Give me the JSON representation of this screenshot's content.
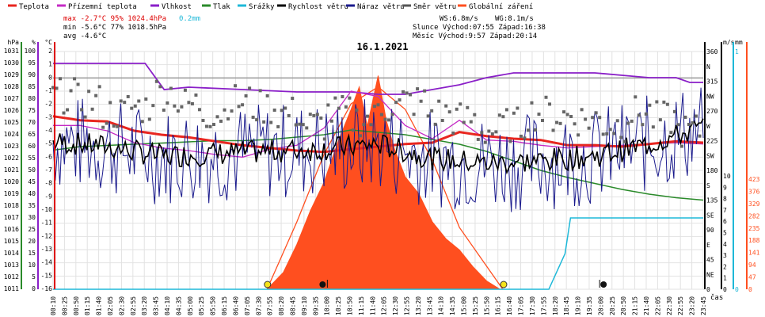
{
  "chart_data": {
    "type": "line",
    "title": "16.1.2021",
    "xlabel": "čas",
    "legend": [
      {
        "label": "Teplota",
        "color": "#e8261f"
      },
      {
        "label": "Přízemní teplota",
        "color": "#c52ac5"
      },
      {
        "label": "Vlhkost",
        "color": "#8a1fc8"
      },
      {
        "label": "Tlak",
        "color": "#2a8a2a"
      },
      {
        "label": "Srážky",
        "color": "#1eb8d8"
      },
      {
        "label": "Rychlost větru",
        "color": "#000000"
      },
      {
        "label": "Náraz větru",
        "color": "#1a1a8c"
      },
      {
        "label": "Směr větru",
        "color": "#555555"
      },
      {
        "label": "Globální záření",
        "color": "#ff4f1f"
      }
    ],
    "stats": {
      "max_line": "max -2.7°C  95%  1024.4hPa",
      "max_rain": "0.2mm",
      "min_line": "min -5.6°C  77%  1018.5hPa",
      "avg_line": "avg -4.6°C"
    },
    "wind_stats": {
      "ws": "WS:6.8m/s",
      "wg": "WG:8.1m/s",
      "sun": "Slunce  Východ:07:55   Západ:16:38",
      "moon": "Měsíc  Východ:9:57    Západ:20:14"
    },
    "axes": {
      "hpa": {
        "label": "hPa",
        "ticks": [
          "1031",
          "1030",
          "1029",
          "1028",
          "1027",
          "1026",
          "1025",
          "1024",
          "1023",
          "1022",
          "1021",
          "1020",
          "1019",
          "1018",
          "1017",
          "1016",
          "1015",
          "1014",
          "1013",
          "1012",
          "1011"
        ]
      },
      "pct": {
        "label": "%",
        "ticks": [
          "100",
          "95",
          "90",
          "85",
          "80",
          "75",
          "70",
          "65",
          "60",
          "55",
          "50",
          "45",
          "40",
          "35",
          "30",
          "25",
          "20",
          "15",
          "10",
          "5",
          "0"
        ]
      },
      "temp": {
        "label": "°C",
        "ticks": [
          "2",
          "1",
          "0",
          "-1",
          "-2",
          "-3",
          "-4",
          "-5",
          "-6",
          "-7",
          "-8",
          "-9",
          "-10",
          "-11",
          "-12",
          "-13",
          "-14",
          "-15",
          "-16"
        ]
      },
      "dir": {
        "ticks": [
          "360",
          "N",
          "315",
          "NW",
          "270",
          "W",
          "225",
          "SW",
          "180",
          "S",
          "135",
          "SE",
          "90",
          "E",
          "45",
          "NE",
          "0"
        ]
      },
      "ms": {
        "label": "m/s",
        "ticks": [
          "10",
          "9",
          "8",
          "7",
          "6",
          "5",
          "4",
          "3",
          "2",
          "1",
          "0"
        ]
      },
      "mm": {
        "label": "mm",
        "ticks": [
          "1",
          "0"
        ]
      },
      "wm2": {
        "ticks": [
          "423",
          "376",
          "329",
          "282",
          "235",
          "188",
          "141",
          "94",
          "47",
          "0"
        ]
      }
    },
    "x_labels": [
      "00:10",
      "00:25",
      "00:50",
      "01:15",
      "01:40",
      "02:05",
      "02:30",
      "02:55",
      "03:20",
      "03:45",
      "04:10",
      "04:35",
      "05:00",
      "05:25",
      "05:50",
      "06:15",
      "06:40",
      "07:05",
      "07:30",
      "07:55",
      "08:20",
      "08:45",
      "09:10",
      "09:35",
      "10:00",
      "10:25",
      "10:50",
      "11:15",
      "11:40",
      "12:05",
      "12:30",
      "12:55",
      "13:20",
      "13:45",
      "14:10",
      "14:35",
      "15:00",
      "15:25",
      "15:50",
      "16:15",
      "16:40",
      "17:05",
      "17:30",
      "17:55",
      "18:20",
      "18:45",
      "19:10",
      "19:35",
      "20:00",
      "20:25",
      "20:50",
      "21:15",
      "21:40",
      "22:05",
      "22:30",
      "22:55",
      "23:20",
      "23:45"
    ],
    "ylim_temp": [
      -16,
      2
    ],
    "series": [
      {
        "name": "Teplota",
        "unit": "°C",
        "x": [
          0,
          1,
          2,
          3,
          4,
          5,
          6,
          7,
          8,
          9,
          10,
          11,
          12,
          13,
          14,
          15,
          16,
          17,
          18,
          19,
          20,
          21,
          22,
          23,
          24
        ],
        "values": [
          -2.9,
          -3.2,
          -3.3,
          -4.0,
          -4.3,
          -4.5,
          -4.8,
          -5.1,
          -5.3,
          -5.5,
          -5.6,
          -5.4,
          -5.2,
          -5.0,
          -4.9,
          -4.1,
          -4.4,
          -4.6,
          -4.7,
          -5.1,
          -5.1,
          -5.2,
          -5.0,
          -4.8,
          -4.9
        ]
      },
      {
        "name": "Přízemní teplota",
        "unit": "°C",
        "x": [
          0,
          1,
          2,
          3,
          4,
          5,
          6,
          7,
          8,
          9,
          10,
          11,
          12,
          13,
          14,
          15,
          16,
          17,
          18,
          19,
          20,
          21,
          22,
          23,
          24
        ],
        "values": [
          -3.6,
          -3.6,
          -4.0,
          -4.9,
          -5.3,
          -5.5,
          -5.8,
          -6.0,
          -5.4,
          -5.1,
          -3.8,
          -1.0,
          -1.4,
          -3.6,
          -4.6,
          -3.2,
          -4.7,
          -4.8,
          -5.1,
          -5.3,
          -5.2,
          -5.1,
          -5.0,
          -4.9,
          -5.0
        ]
      },
      {
        "name": "Vlhkost",
        "unit": "%",
        "x": [
          0,
          2,
          3.4,
          4.1,
          5,
          7,
          9,
          11,
          12,
          13,
          14,
          15,
          16,
          17,
          18,
          19,
          20,
          21,
          22,
          23,
          23.5,
          24
        ],
        "values": [
          95,
          95,
          95,
          84,
          85,
          84,
          83,
          83,
          82,
          82,
          84,
          86,
          89,
          91,
          91,
          91,
          91,
          90,
          89,
          89,
          87,
          87
        ]
      },
      {
        "name": "Tlak",
        "unit": "hPa",
        "x": [
          0,
          1,
          2,
          3,
          4,
          5,
          6,
          7,
          8,
          9,
          10,
          11,
          12,
          13,
          14,
          15,
          16,
          17,
          18,
          19,
          20,
          21,
          22,
          23,
          24
        ],
        "values": [
          1022.7,
          1023.0,
          1023.1,
          1023.2,
          1023.3,
          1023.4,
          1023.5,
          1023.5,
          1023.6,
          1023.8,
          1024.0,
          1024.4,
          1024.2,
          1024.0,
          1023.6,
          1023.2,
          1022.6,
          1021.8,
          1021.0,
          1020.4,
          1019.9,
          1019.4,
          1019.0,
          1018.7,
          1018.5
        ]
      },
      {
        "name": "Srážky",
        "unit": "mm",
        "x": [
          0,
          18.3,
          18.9,
          19.1,
          24
        ],
        "values": [
          0,
          0,
          0.1,
          0.2,
          0.2
        ]
      },
      {
        "name": "Rychlost větru",
        "unit": "m/s",
        "x": [
          0,
          2,
          4,
          6,
          8,
          10,
          12,
          14,
          16,
          18,
          20,
          22,
          24
        ],
        "values": [
          6.2,
          6.0,
          5.6,
          5.7,
          5.8,
          5.9,
          6.1,
          5.5,
          5.3,
          5.4,
          5.6,
          6.1,
          6.8
        ]
      },
      {
        "name": "Globální záření",
        "unit": "W/m²",
        "x": [
          7.9,
          8.5,
          9,
          9.5,
          10,
          10.5,
          11,
          11.3,
          11.6,
          12,
          12.3,
          12.6,
          13,
          13.5,
          14,
          14.5,
          15,
          15.5,
          16,
          16.5
        ],
        "values": [
          0,
          30,
          80,
          140,
          190,
          260,
          320,
          360,
          290,
          380,
          300,
          250,
          200,
          170,
          120,
          90,
          70,
          40,
          15,
          0
        ]
      },
      {
        "name": "Globální záření (teoretické)",
        "unit": "W/m²",
        "x": [
          7.9,
          9,
          10,
          11,
          12,
          13,
          14,
          15,
          16.6
        ],
        "values": [
          0,
          120,
          240,
          330,
          360,
          320,
          230,
          110,
          0
        ]
      }
    ],
    "wind_dir_deg": [
      330,
      320,
      300,
      310,
      335,
      315,
      300,
      320,
      310,
      300,
      280,
      300,
      290,
      310,
      320,
      300,
      290,
      270,
      280,
      300,
      295,
      290,
      280,
      300,
      290,
      270
    ],
    "markers": {
      "sunrise": "07:55",
      "sunset": "16:38",
      "moonrise": "9:57",
      "moonset": "20:14"
    }
  }
}
